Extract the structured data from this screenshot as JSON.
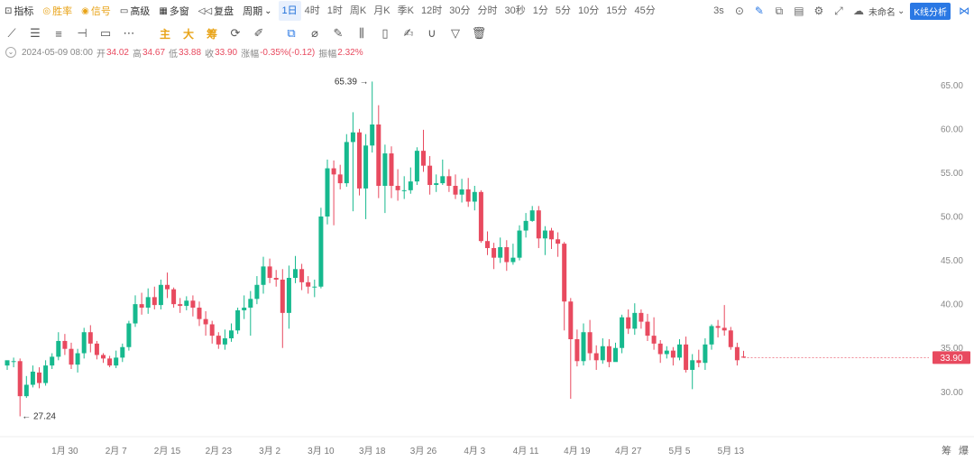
{
  "toolbar": {
    "items": [
      {
        "label": "指标",
        "icon": "chart-icon"
      },
      {
        "label": "胜率",
        "icon": "target-icon"
      },
      {
        "label": "信号",
        "icon": "bulb-icon"
      },
      {
        "label": "高级",
        "icon": "briefcase-icon"
      },
      {
        "label": "多窗",
        "icon": "grid-icon"
      },
      {
        "label": "复盘",
        "icon": "rewind-icon"
      }
    ],
    "period_label": "周期",
    "periods": [
      "1日",
      "4时",
      "1时",
      "周K",
      "月K",
      "季K",
      "12时",
      "30分",
      "分时",
      "30秒",
      "1分",
      "5分",
      "10分",
      "15分",
      "45分"
    ],
    "active_period": "1日",
    "interval": "3s",
    "doc_name": "未命名",
    "k_button": "K线分析"
  },
  "drawing_tools": {
    "text_tools": [
      "主",
      "大",
      "筹"
    ]
  },
  "info": {
    "date": "2024-05-09 08:00",
    "open_label": "开",
    "open": "34.02",
    "high_label": "高",
    "high": "34.67",
    "low_label": "低",
    "low": "33.88",
    "close_label": "收",
    "close": "33.90",
    "change_label": "涨幅",
    "change": "-0.35%(-0.12)",
    "amp_label": "振幅",
    "amp": "2.32%"
  },
  "bottom_labels": [
    "筹",
    "爆"
  ],
  "colors": {
    "up": "#16b98e",
    "down": "#e84a5f",
    "accent": "#2a78e4"
  },
  "chart_data": {
    "type": "candlestick",
    "y_ticks": [
      30,
      35,
      40,
      45,
      50,
      55,
      60,
      65
    ],
    "ylim": [
      25.5,
      67.5
    ],
    "x_tick_labels": [
      "1月 30",
      "2月 7",
      "2月 15",
      "2月 23",
      "3月 2",
      "3月 10",
      "3月 18",
      "3月 26",
      "4月 3",
      "4月 11",
      "4月 19",
      "4月 27",
      "5月 5",
      "5月 13"
    ],
    "x_tick_index": [
      9,
      17,
      25,
      33,
      41,
      49,
      57,
      65,
      73,
      81,
      89,
      97,
      105,
      113
    ],
    "max_label": "65.39",
    "min_label": "27.24",
    "last_price": "33.90",
    "candles": [
      [
        33.0,
        33.6,
        33.4,
        32.5
      ],
      [
        33.4,
        33.5,
        33.9,
        32.8
      ],
      [
        33.5,
        29.5,
        33.8,
        27.2
      ],
      [
        29.5,
        30.8,
        31.8,
        29.3
      ],
      [
        30.8,
        32.3,
        33.0,
        30.5
      ],
      [
        32.2,
        31.0,
        32.8,
        30.4
      ],
      [
        31.0,
        33.0,
        33.6,
        30.7
      ],
      [
        33.0,
        34.0,
        34.4,
        32.6
      ],
      [
        34.0,
        35.8,
        36.8,
        33.6
      ],
      [
        35.8,
        34.9,
        36.6,
        34.2
      ],
      [
        34.9,
        33.1,
        35.6,
        32.6
      ],
      [
        33.1,
        34.4,
        34.9,
        32.2
      ],
      [
        34.4,
        36.8,
        37.3,
        33.8
      ],
      [
        36.8,
        35.5,
        37.6,
        34.5
      ],
      [
        35.5,
        34.2,
        35.8,
        33.7
      ],
      [
        34.2,
        33.8,
        34.4,
        33.3
      ],
      [
        33.8,
        33.0,
        34.1,
        32.8
      ],
      [
        33.0,
        33.9,
        34.7,
        32.7
      ],
      [
        33.9,
        35.1,
        35.5,
        33.4
      ],
      [
        35.1,
        37.8,
        38.1,
        34.7
      ],
      [
        37.8,
        40.0,
        41.0,
        37.4
      ],
      [
        40.0,
        39.6,
        41.3,
        38.8
      ],
      [
        39.6,
        40.8,
        41.8,
        38.9
      ],
      [
        40.8,
        39.9,
        42.0,
        39.4
      ],
      [
        39.9,
        42.2,
        42.8,
        39.4
      ],
      [
        42.2,
        41.7,
        43.6,
        40.7
      ],
      [
        41.7,
        40.0,
        41.9,
        39.6
      ],
      [
        40.0,
        39.8,
        40.7,
        39.0
      ],
      [
        39.8,
        40.4,
        40.9,
        39.3
      ],
      [
        40.4,
        39.6,
        41.0,
        38.6
      ],
      [
        39.6,
        38.3,
        40.3,
        37.5
      ],
      [
        38.3,
        37.7,
        39.2,
        36.4
      ],
      [
        37.7,
        36.4,
        38.1,
        35.5
      ],
      [
        36.4,
        35.4,
        36.8,
        34.9
      ],
      [
        35.4,
        36.1,
        37.1,
        34.8
      ],
      [
        36.1,
        37.0,
        37.8,
        35.7
      ],
      [
        37.0,
        39.3,
        39.6,
        36.6
      ],
      [
        39.3,
        39.6,
        41.0,
        38.3
      ],
      [
        39.6,
        40.6,
        41.5,
        36.4
      ],
      [
        40.6,
        42.2,
        43.2,
        40.0
      ],
      [
        42.2,
        44.3,
        45.4,
        41.2
      ],
      [
        44.3,
        43.0,
        45.2,
        42.4
      ],
      [
        43.0,
        42.8,
        43.9,
        42.0
      ],
      [
        42.8,
        39.0,
        44.0,
        35.0
      ],
      [
        39.0,
        43.0,
        44.4,
        37.2
      ],
      [
        43.0,
        44.0,
        45.5,
        42.4
      ],
      [
        44.0,
        42.5,
        44.6,
        41.6
      ],
      [
        42.5,
        42.0,
        43.2,
        41.2
      ],
      [
        42.0,
        42.0,
        42.8,
        40.8
      ],
      [
        42.0,
        50.0,
        51.0,
        41.8
      ],
      [
        50.0,
        55.5,
        56.5,
        49.1
      ],
      [
        55.5,
        54.8,
        56.4,
        49.0
      ],
      [
        54.8,
        53.8,
        55.9,
        53.1
      ],
      [
        53.8,
        58.5,
        59.4,
        53.4
      ],
      [
        58.5,
        59.6,
        61.9,
        50.6
      ],
      [
        59.6,
        53.2,
        60.0,
        52.4
      ],
      [
        53.2,
        58.1,
        59.4,
        49.7
      ],
      [
        58.1,
        60.5,
        65.4,
        57.3
      ],
      [
        60.5,
        53.5,
        62.7,
        52.1
      ],
      [
        53.5,
        57.2,
        58.2,
        50.4
      ],
      [
        57.2,
        53.5,
        58.0,
        52.1
      ],
      [
        53.5,
        53.0,
        55.4,
        51.8
      ],
      [
        53.0,
        53.0,
        54.6,
        52.0
      ],
      [
        53.0,
        54.0,
        55.6,
        52.6
      ],
      [
        54.0,
        57.5,
        57.9,
        53.6
      ],
      [
        57.5,
        55.8,
        59.9,
        55.1
      ],
      [
        55.8,
        53.6,
        56.9,
        52.5
      ],
      [
        53.6,
        53.8,
        54.8,
        52.8
      ],
      [
        53.8,
        54.6,
        56.5,
        53.6
      ],
      [
        54.6,
        53.5,
        55.4,
        52.8
      ],
      [
        53.5,
        52.5,
        54.8,
        52.0
      ],
      [
        52.5,
        53.1,
        54.3,
        51.6
      ],
      [
        53.1,
        51.7,
        54.4,
        51.1
      ],
      [
        51.7,
        52.8,
        53.5,
        50.7
      ],
      [
        52.8,
        47.2,
        53.0,
        47.0
      ],
      [
        47.2,
        46.4,
        48.3,
        45.6
      ],
      [
        46.4,
        45.3,
        47.0,
        44.0
      ],
      [
        45.3,
        46.5,
        47.6,
        44.7
      ],
      [
        46.5,
        44.8,
        47.3,
        43.8
      ],
      [
        44.8,
        45.3,
        46.9,
        44.5
      ],
      [
        45.3,
        48.4,
        49.0,
        45.0
      ],
      [
        48.4,
        49.5,
        50.4,
        47.6
      ],
      [
        49.5,
        50.7,
        51.2,
        49.4
      ],
      [
        50.7,
        47.5,
        51.2,
        46.4
      ],
      [
        47.5,
        48.4,
        48.9,
        45.6
      ],
      [
        48.4,
        47.4,
        48.7,
        46.3
      ],
      [
        47.4,
        46.9,
        48.2,
        45.4
      ],
      [
        46.9,
        40.3,
        47.1,
        37.0
      ],
      [
        40.3,
        36.0,
        40.7,
        29.2
      ],
      [
        36.0,
        33.5,
        37.1,
        32.9
      ],
      [
        33.5,
        36.8,
        37.8,
        33.0
      ],
      [
        36.8,
        34.4,
        38.2,
        33.6
      ],
      [
        34.4,
        33.6,
        35.3,
        32.5
      ],
      [
        33.6,
        35.2,
        36.1,
        33.2
      ],
      [
        35.2,
        33.4,
        36.0,
        32.8
      ],
      [
        33.4,
        35.0,
        35.6,
        34.2
      ],
      [
        35.0,
        38.5,
        38.8,
        34.4
      ],
      [
        38.5,
        37.2,
        39.4,
        36.6
      ],
      [
        37.2,
        39.0,
        40.1,
        36.5
      ],
      [
        39.0,
        38.0,
        39.4,
        37.2
      ],
      [
        38.0,
        36.4,
        38.9,
        35.8
      ],
      [
        36.4,
        35.5,
        38.5,
        34.8
      ],
      [
        35.5,
        34.3,
        35.9,
        33.3
      ],
      [
        34.3,
        34.7,
        35.2,
        33.8
      ],
      [
        34.7,
        33.9,
        35.1,
        33.0
      ],
      [
        33.9,
        35.4,
        36.0,
        33.6
      ],
      [
        35.4,
        32.5,
        36.3,
        32.2
      ],
      [
        32.5,
        33.6,
        34.3,
        30.3
      ],
      [
        33.6,
        33.3,
        34.8,
        32.8
      ],
      [
        33.3,
        35.4,
        36.1,
        32.5
      ],
      [
        35.4,
        37.5,
        37.7,
        34.8
      ],
      [
        37.5,
        37.3,
        38.2,
        36.2
      ],
      [
        37.3,
        37.0,
        39.9,
        36.4
      ],
      [
        37.0,
        35.1,
        37.4,
        34.8
      ],
      [
        35.1,
        33.6,
        35.6,
        33.0
      ],
      [
        34.02,
        33.9,
        34.67,
        33.88
      ]
    ]
  }
}
